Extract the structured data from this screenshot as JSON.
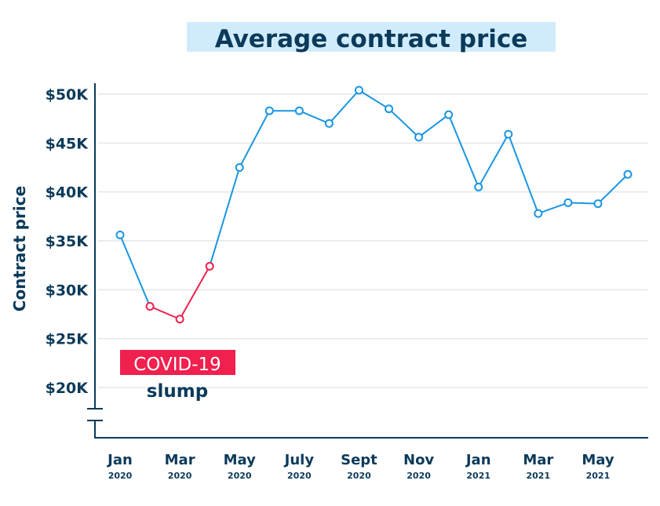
{
  "chart_data": {
    "type": "line",
    "title": "Average contract price",
    "ylabel": "Contract price",
    "xlabel": "",
    "ylim": [
      20000,
      50000
    ],
    "y_ticks": [
      {
        "value": 50000,
        "label": "$50K"
      },
      {
        "value": 45000,
        "label": "$45K"
      },
      {
        "value": 40000,
        "label": "$40K"
      },
      {
        "value": 35000,
        "label": "$35K"
      },
      {
        "value": 30000,
        "label": "$30K"
      },
      {
        "value": 25000,
        "label": "$25K"
      },
      {
        "value": 20000,
        "label": "$20K"
      }
    ],
    "x": [
      "2020-01",
      "2020-02",
      "2020-03",
      "2020-04",
      "2020-05",
      "2020-06",
      "2020-07",
      "2020-08",
      "2020-09",
      "2020-10",
      "2020-11",
      "2020-12",
      "2021-01",
      "2021-02",
      "2021-03",
      "2021-04",
      "2021-05",
      "2021-06"
    ],
    "x_ticks": [
      {
        "index": 0,
        "month": "Jan",
        "year": "2020"
      },
      {
        "index": 2,
        "month": "Mar",
        "year": "2020"
      },
      {
        "index": 4,
        "month": "May",
        "year": "2020"
      },
      {
        "index": 6,
        "month": "July",
        "year": "2020"
      },
      {
        "index": 8,
        "month": "Sept",
        "year": "2020"
      },
      {
        "index": 10,
        "month": "Nov",
        "year": "2020"
      },
      {
        "index": 12,
        "month": "Jan",
        "year": "2021"
      },
      {
        "index": 14,
        "month": "Mar",
        "year": "2021"
      },
      {
        "index": 16,
        "month": "May",
        "year": "2021"
      }
    ],
    "values": [
      35600,
      28300,
      27000,
      32400,
      42500,
      48300,
      48300,
      47000,
      50400,
      48500,
      45600,
      47900,
      40500,
      45900,
      37800,
      38900,
      38800,
      41800
    ],
    "highlight_range": [
      1,
      3
    ],
    "annotation": {
      "label": "COVID-19",
      "sublabel": "slump"
    },
    "grid": true,
    "y_axis_break": true,
    "colors": {
      "line": "#1a96e0",
      "highlight": "#f0204f",
      "text": "#0b3a5a",
      "title_bg": "#d0ecfc",
      "grid": "#e6e6e6"
    }
  }
}
